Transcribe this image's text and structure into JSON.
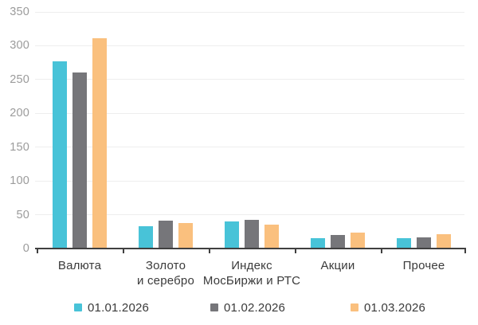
{
  "chart_data": {
    "type": "bar",
    "title": "",
    "xlabel": "",
    "ylabel": "",
    "categories": [
      "Валюта",
      "Золото и серебро",
      "Индекс МосБиржи и РТС",
      "Акции",
      "Прочее"
    ],
    "category_label_lines": [
      [
        "Валюта"
      ],
      [
        "Золото",
        "и серебро"
      ],
      [
        "Индекс",
        "МосБиржи и РТС"
      ],
      [
        "Акции"
      ],
      [
        "Прочее"
      ]
    ],
    "series": [
      {
        "name": "01.01.2026",
        "color": "#48C3D8",
        "values": [
          277,
          33,
          40,
          15,
          15
        ]
      },
      {
        "name": "01.02.2026",
        "color": "#76767A",
        "values": [
          261,
          41,
          42,
          20,
          17
        ]
      },
      {
        "name": "01.03.2026",
        "color": "#FAC07E",
        "values": [
          311,
          38,
          35,
          23,
          21
        ]
      }
    ],
    "y_axis": {
      "min": 0,
      "max": 350,
      "step": 50,
      "tick_labels": [
        "0",
        "50",
        "100",
        "150",
        "200",
        "250",
        "300",
        "350"
      ]
    },
    "grid": true,
    "legend_position": "bottom",
    "colors": {
      "background": "#FFFFFF",
      "gridline": "#EEEEEE",
      "axis_line": "#404040",
      "tick_label": "#9B9B9B",
      "category_label": "#3A3A3A",
      "legend_text": "#3A3A3A"
    }
  }
}
